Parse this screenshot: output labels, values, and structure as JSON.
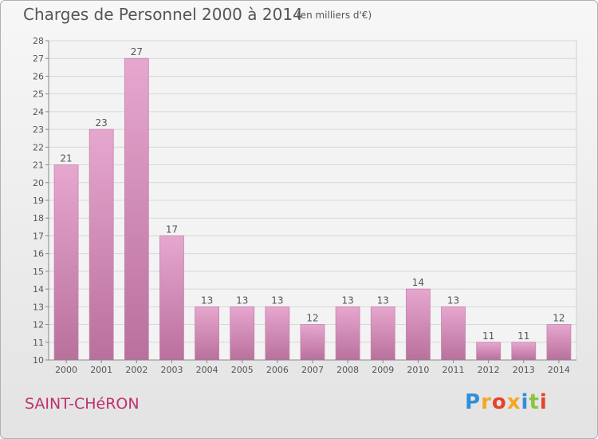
{
  "title": "Charges de Personnel 2000 à 2014",
  "subtitle": "(en milliers d'€)",
  "location": "SAINT-CHéRON",
  "brand": {
    "text": "Proxiti",
    "letters": [
      {
        "char": "P",
        "color": "#2f8fd8"
      },
      {
        "char": "r",
        "color": "#f5a623"
      },
      {
        "char": "o",
        "color": "#e8412b"
      },
      {
        "char": "x",
        "color": "#f5a623"
      },
      {
        "char": "i",
        "color": "#2f8fd8"
      },
      {
        "char": "t",
        "color": "#8cc43f"
      },
      {
        "char": "i",
        "color": "#e8412b"
      }
    ]
  },
  "colors": {
    "bar_top": "#e6a7cf",
    "bar_bottom": "#b9709c",
    "label": "#555555",
    "grid": "#d8d8d8"
  },
  "chart_data": {
    "type": "bar",
    "title": "Charges de Personnel 2000 à 2014",
    "subtitle": "(en milliers d'€)",
    "xlabel": "",
    "ylabel": "",
    "categories": [
      "2000",
      "2001",
      "2002",
      "2003",
      "2004",
      "2005",
      "2006",
      "2007",
      "2008",
      "2009",
      "2010",
      "2011",
      "2012",
      "2013",
      "2014"
    ],
    "values": [
      21,
      23,
      27,
      17,
      13,
      13,
      13,
      12,
      13,
      13,
      14,
      13,
      11,
      11,
      12
    ],
    "ylim": [
      10,
      28
    ],
    "yticks": [
      10,
      11,
      12,
      13,
      14,
      15,
      16,
      17,
      18,
      19,
      20,
      21,
      22,
      23,
      24,
      25,
      26,
      27,
      28
    ],
    "grid": true,
    "data_labels": true
  }
}
